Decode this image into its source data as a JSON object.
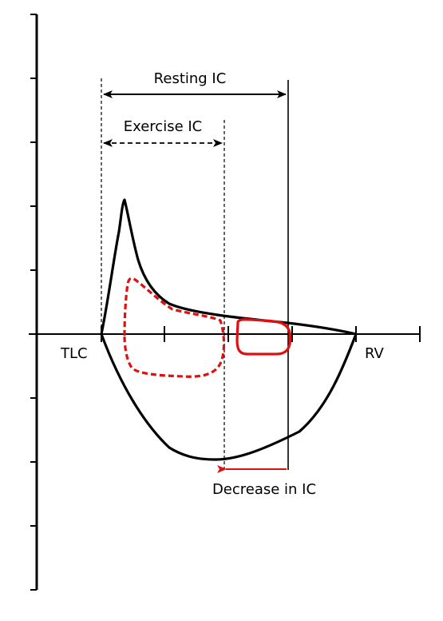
{
  "diagram": {
    "labels": {
      "resting_ic": "Resting IC",
      "exercise_ic": "Exercise IC",
      "tlc": "TLC",
      "rv": "RV",
      "decrease_in_ic": "Decrease in IC"
    },
    "colors": {
      "axis": "#000000",
      "rest_loop": "#000000",
      "exercise_loop": "#e01010",
      "arrow": "#000000",
      "decrease_arrow": "#e01010"
    }
  }
}
